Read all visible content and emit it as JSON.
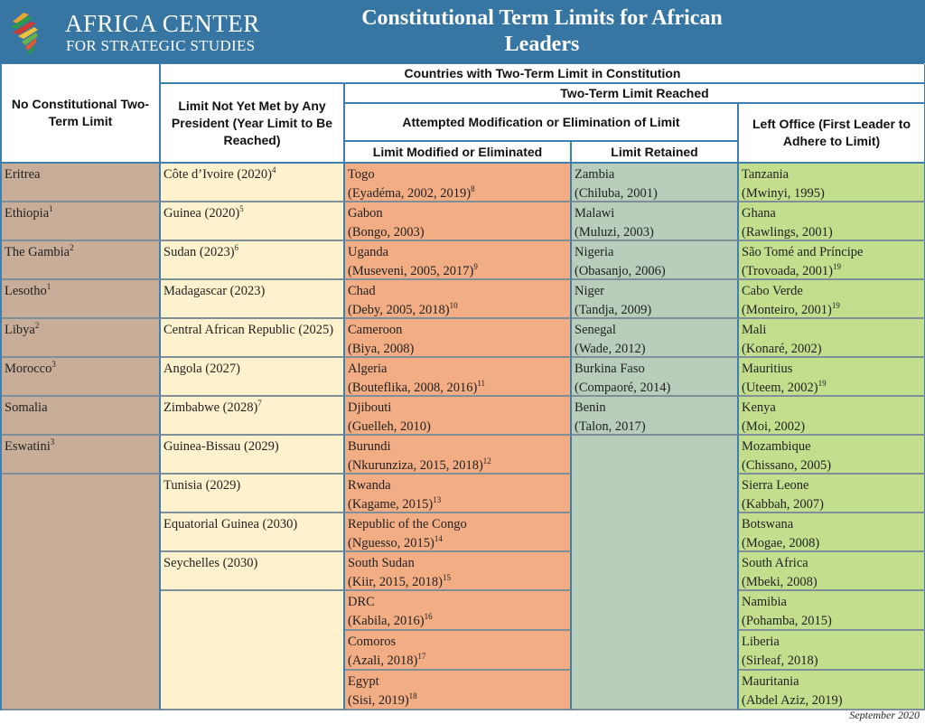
{
  "header": {
    "org_line1": "AFRICA CENTER",
    "org_line2": "FOR STRATEGIC STUDIES",
    "title": "Constitutional Term Limits for African Leaders"
  },
  "colors": {
    "banner": "#3776a2",
    "no_limit": "#c8ae98",
    "not_yet_met": "#fdf2cd",
    "modified": "#f2ad84",
    "retained": "#b8cdba",
    "left_office": "#c3df8e"
  },
  "table_headers": {
    "no_limit": "No Constitutional Two-Term Limit",
    "two_term_group": "Countries with Two-Term Limit in Constitution",
    "not_yet_met": "Limit Not Yet Met by Any President (Year Limit to Be Reached)",
    "limit_reached": "Two-Term Limit Reached",
    "attempted": "Attempted Modification or Elimination of Limit",
    "left_office": "Left Office (First Leader to Adhere to Limit)",
    "modified": "Limit Modified or Eliminated",
    "retained": "Limit Retained"
  },
  "columns": {
    "no_limit": [
      {
        "name": "Eritrea",
        "note": ""
      },
      {
        "name": "Ethiopia",
        "note": "1"
      },
      {
        "name": "The Gambia",
        "note": "2"
      },
      {
        "name": "Lesotho",
        "note": "1"
      },
      {
        "name": "Libya",
        "note": "2"
      },
      {
        "name": "Morocco",
        "note": "3"
      },
      {
        "name": "Somalia",
        "note": ""
      },
      {
        "name": "Eswatini",
        "note": "3"
      }
    ],
    "not_yet_met": [
      {
        "name": "Côte d’Ivoire (2020)",
        "note": "4"
      },
      {
        "name": "Guinea (2020)",
        "note": "5"
      },
      {
        "name": "Sudan (2023)",
        "note": "6"
      },
      {
        "name": "Madagascar (2023)",
        "note": ""
      },
      {
        "name": "Central African Republic (2025)",
        "note": ""
      },
      {
        "name": "Angola (2027)",
        "note": ""
      },
      {
        "name": "Zimbabwe (2028)",
        "note": "7"
      },
      {
        "name": "Guinea-Bissau (2029)",
        "note": ""
      },
      {
        "name": "Tunisia (2029)",
        "note": ""
      },
      {
        "name": "Equatorial Guinea (2030)",
        "note": ""
      },
      {
        "name": "Seychelles (2030)",
        "note": ""
      }
    ],
    "modified": [
      {
        "name": "Togo",
        "detail": "(Eyadéma, 2002, 2019)",
        "note": "8"
      },
      {
        "name": "Gabon",
        "detail": "(Bongo, 2003)",
        "note": ""
      },
      {
        "name": "Uganda",
        "detail": "(Museveni, 2005, 2017)",
        "note": "9"
      },
      {
        "name": "Chad",
        "detail": "(Deby, 2005, 2018)",
        "note": "10"
      },
      {
        "name": "Cameroon",
        "detail": "(Biya, 2008)",
        "note": ""
      },
      {
        "name": "Algeria",
        "detail": "(Bouteflika, 2008, 2016)",
        "note": "11"
      },
      {
        "name": "Djibouti",
        "detail": "(Guelleh, 2010)",
        "note": ""
      },
      {
        "name": "Burundi",
        "detail": "(Nkurunziza, 2015, 2018)",
        "note": "12"
      },
      {
        "name": "Rwanda",
        "detail": "(Kagame, 2015)",
        "note": "13"
      },
      {
        "name": "Republic of the Congo",
        "detail": "(Nguesso, 2015)",
        "note": "14"
      },
      {
        "name": "South Sudan",
        "detail": "(Kiir, 2015, 2018)",
        "note": "15"
      },
      {
        "name": "DRC",
        "detail": "(Kabila, 2016)",
        "note": "16"
      },
      {
        "name": "Comoros",
        "detail": "(Azali, 2018)",
        "note": "17"
      },
      {
        "name": "Egypt",
        "detail": "(Sisi, 2019)",
        "note": "18"
      }
    ],
    "retained": [
      {
        "name": "Zambia",
        "detail": "(Chiluba, 2001)",
        "note": ""
      },
      {
        "name": "Malawi",
        "detail": "(Muluzi, 2003)",
        "note": ""
      },
      {
        "name": "Nigeria",
        "detail": "(Obasanjo, 2006)",
        "note": ""
      },
      {
        "name": "Niger",
        "detail": "(Tandja, 2009)",
        "note": ""
      },
      {
        "name": "Senegal",
        "detail": "(Wade, 2012)",
        "note": ""
      },
      {
        "name": "Burkina Faso",
        "detail": "(Compaoré, 2014)",
        "note": ""
      },
      {
        "name": "Benin",
        "detail": "(Talon, 2017)",
        "note": ""
      }
    ],
    "left_office": [
      {
        "name": "Tanzania",
        "detail": "(Mwinyi, 1995)",
        "note": ""
      },
      {
        "name": "Ghana",
        "detail": "(Rawlings, 2001)",
        "note": ""
      },
      {
        "name": "São Tomé and Príncipe",
        "detail": "(Trovoada, 2001)",
        "note": "19"
      },
      {
        "name": "Cabo Verde",
        "detail": "(Monteiro, 2001)",
        "note": "19"
      },
      {
        "name": "Mali",
        "detail": "(Konaré, 2002)",
        "note": ""
      },
      {
        "name": "Mauritius",
        "detail": "(Uteem, 2002)",
        "note": "19"
      },
      {
        "name": "Kenya",
        "detail": "(Moi, 2002)",
        "note": ""
      },
      {
        "name": "Mozambique",
        "detail": "(Chissano, 2005)",
        "note": ""
      },
      {
        "name": "Sierra Leone",
        "detail": "(Kabbah, 2007)",
        "note": ""
      },
      {
        "name": "Botswana",
        "detail": "(Mogae, 2008)",
        "note": ""
      },
      {
        "name": "South Africa",
        "detail": "(Mbeki, 2008)",
        "note": ""
      },
      {
        "name": "Namibia",
        "detail": "(Pohamba, 2015)",
        "note": ""
      },
      {
        "name": "Liberia",
        "detail": "(Sirleaf, 2018)",
        "note": ""
      },
      {
        "name": "Mauritania",
        "detail": "(Abdel Aziz, 2019)",
        "note": ""
      }
    ]
  },
  "footer": {
    "date": "September 2020"
  }
}
